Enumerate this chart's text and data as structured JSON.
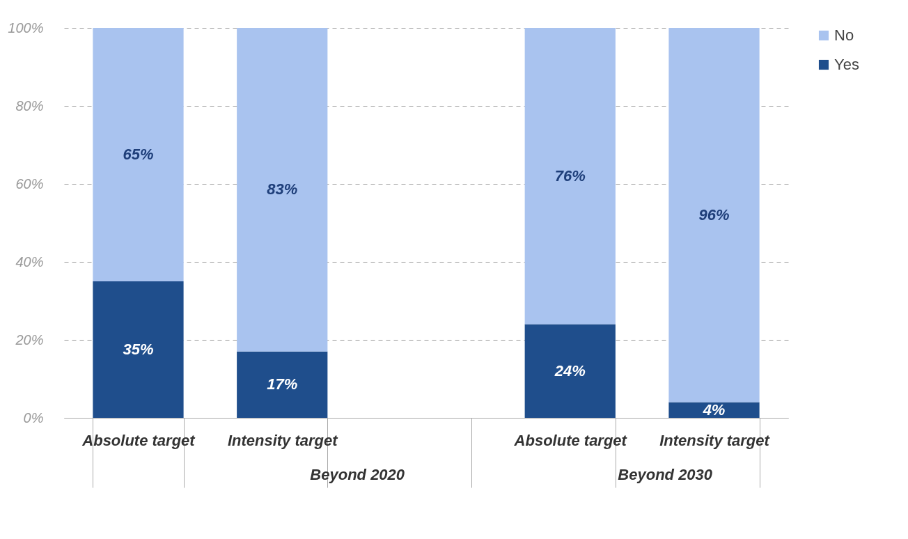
{
  "chart_data": {
    "type": "bar",
    "stacked": true,
    "categories": [
      "Absolute target",
      "Intensity target",
      null,
      "Absolute target",
      "Intensity target"
    ],
    "series": [
      {
        "name": "Yes",
        "color": "#1f4e8c",
        "values": [
          35,
          17,
          null,
          24,
          4
        ],
        "value_labels": [
          "35%",
          "17%",
          null,
          "24%",
          "4%"
        ]
      },
      {
        "name": "No",
        "color": "#a9c3ef",
        "values": [
          65,
          83,
          null,
          76,
          96
        ],
        "value_labels": [
          "65%",
          "83%",
          null,
          "76%",
          "96%"
        ]
      }
    ],
    "annotations": [
      "Beyond 2020",
      "Beyond 2030"
    ],
    "ylim": [
      0,
      100
    ],
    "yticks": [
      {
        "value": 0,
        "label": "0%"
      },
      {
        "value": 20,
        "label": "20%"
      },
      {
        "value": 40,
        "label": "40%"
      },
      {
        "value": 60,
        "label": "60%"
      },
      {
        "value": 80,
        "label": "80%"
      },
      {
        "value": 100,
        "label": "100%"
      }
    ],
    "grid": "y",
    "legend": "right"
  }
}
